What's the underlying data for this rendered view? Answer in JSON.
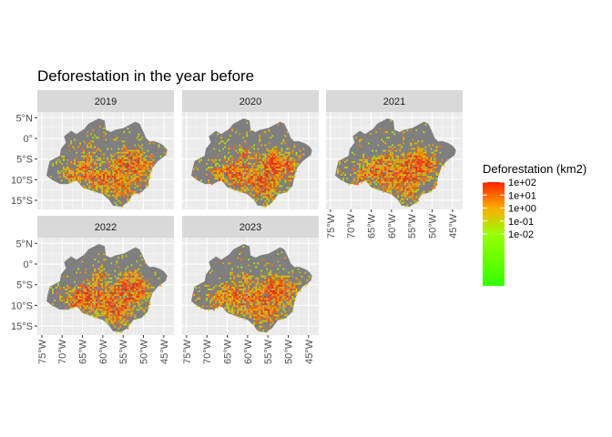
{
  "chart_data": {
    "type": "map",
    "title": "Deforestation in the year before",
    "facets": [
      "2019",
      "2020",
      "2021",
      "2022",
      "2023"
    ],
    "xlabel": "",
    "ylabel": "",
    "x_ticks": [
      {
        "value": -75,
        "label": "75°W"
      },
      {
        "value": -70,
        "label": "70°W"
      },
      {
        "value": -65,
        "label": "65°W"
      },
      {
        "value": -60,
        "label": "60°W"
      },
      {
        "value": -55,
        "label": "55°W"
      },
      {
        "value": -50,
        "label": "50°W"
      },
      {
        "value": -45,
        "label": "45°W"
      }
    ],
    "y_ticks": [
      {
        "value": 5,
        "label": "5°N"
      },
      {
        "value": 0,
        "label": "0°"
      },
      {
        "value": -5,
        "label": "5°S"
      },
      {
        "value": -10,
        "label": "10°S"
      },
      {
        "value": -15,
        "label": "15°S"
      }
    ],
    "xlim": [
      -76.1,
      -42.5
    ],
    "ylim": [
      -17.2,
      6.4
    ],
    "legend": {
      "title": "Deforestation (km2)",
      "scale": "log10",
      "labels": [
        "1e+02",
        "1e+01",
        "1e+00",
        "1e-01",
        "1e-02"
      ],
      "label_values": [
        2,
        1,
        0,
        -1,
        -2
      ],
      "range_log10": [
        -6,
        2
      ],
      "color_low": "#33ff00",
      "color_high": "#ff2200"
    },
    "region_color": "#7f7f7f",
    "region_outline": [
      [
        -73.5,
        -7.5
      ],
      [
        -73.0,
        -5.5
      ],
      [
        -70.5,
        -4.2
      ],
      [
        -70.2,
        -2.5
      ],
      [
        -69.0,
        -1.0
      ],
      [
        -69.5,
        0.5
      ],
      [
        -67.8,
        1.8
      ],
      [
        -66.5,
        1.0
      ],
      [
        -64.5,
        2.3
      ],
      [
        -63.5,
        3.5
      ],
      [
        -61.0,
        4.8
      ],
      [
        -59.6,
        4.3
      ],
      [
        -59.3,
        2.0
      ],
      [
        -58.0,
        1.5
      ],
      [
        -57.0,
        2.0
      ],
      [
        -54.8,
        2.5
      ],
      [
        -52.0,
        4.0
      ],
      [
        -51.0,
        3.5
      ],
      [
        -50.0,
        1.5
      ],
      [
        -49.5,
        0.2
      ],
      [
        -48.5,
        -0.8
      ],
      [
        -47.5,
        -0.7
      ],
      [
        -46.0,
        -1.2
      ],
      [
        -45.0,
        -1.8
      ],
      [
        -44.2,
        -2.8
      ],
      [
        -44.5,
        -4.0
      ],
      [
        -46.5,
        -5.5
      ],
      [
        -47.8,
        -7.0
      ],
      [
        -48.5,
        -9.0
      ],
      [
        -49.0,
        -11.5
      ],
      [
        -50.5,
        -13.0
      ],
      [
        -52.5,
        -13.5
      ],
      [
        -54.0,
        -15.5
      ],
      [
        -55.5,
        -16.5
      ],
      [
        -57.5,
        -16.2
      ],
      [
        -58.5,
        -14.8
      ],
      [
        -60.0,
        -13.5
      ],
      [
        -61.5,
        -13.0
      ],
      [
        -63.0,
        -12.5
      ],
      [
        -65.0,
        -11.8
      ],
      [
        -66.5,
        -10.0
      ],
      [
        -68.5,
        -11.0
      ],
      [
        -70.5,
        -11.0
      ],
      [
        -72.5,
        -10.0
      ],
      [
        -73.8,
        -9.0
      ]
    ],
    "deforestation_hotspots": {
      "2019": [
        [
          -51,
          -7,
          4
        ],
        [
          -53,
          -4.5,
          3.5
        ],
        [
          -55,
          -6.5,
          4
        ],
        [
          -55.5,
          -12,
          3.5
        ],
        [
          -59,
          -10,
          3.5
        ],
        [
          -62,
          -9.5,
          3
        ],
        [
          -63,
          -3,
          2.5
        ],
        [
          -67.5,
          -9,
          2.5
        ],
        [
          -64.5,
          -7,
          3
        ]
      ],
      "2020": [
        [
          -51,
          -6.5,
          4
        ],
        [
          -53.5,
          -5,
          3.5
        ],
        [
          -55,
          -7,
          4
        ],
        [
          -56,
          -12,
          3.5
        ],
        [
          -58.5,
          -10,
          4
        ],
        [
          -62.5,
          -9,
          3
        ],
        [
          -61,
          -3.5,
          2.5
        ],
        [
          -67,
          -8.5,
          2.5
        ],
        [
          -64,
          -7,
          3
        ]
      ],
      "2021": [
        [
          -51.5,
          -6.5,
          4
        ],
        [
          -54,
          -5,
          3.5
        ],
        [
          -55.5,
          -7.5,
          4
        ],
        [
          -56,
          -11.5,
          3.5
        ],
        [
          -59,
          -9.5,
          4
        ],
        [
          -62.5,
          -8.5,
          3.5
        ],
        [
          -60.5,
          -4,
          2.5
        ],
        [
          -67.5,
          -9,
          2.5
        ],
        [
          -64.5,
          -6.5,
          3
        ]
      ],
      "2022": [
        [
          -51.5,
          -6,
          4
        ],
        [
          -53.5,
          -4.5,
          3.5
        ],
        [
          -55.5,
          -7,
          4.5
        ],
        [
          -56,
          -12,
          3.5
        ],
        [
          -59,
          -10,
          4
        ],
        [
          -63,
          -8,
          3.5
        ],
        [
          -61,
          -3,
          2.5
        ],
        [
          -67,
          -9,
          3
        ],
        [
          -64.5,
          -7,
          3
        ]
      ],
      "2023": [
        [
          -51,
          -6.5,
          4
        ],
        [
          -53.5,
          -5,
          3.5
        ],
        [
          -55,
          -7,
          4
        ],
        [
          -55.5,
          -12,
          3.5
        ],
        [
          -59,
          -9.5,
          4
        ],
        [
          -62,
          -8.5,
          3.5
        ],
        [
          -60.5,
          -3.5,
          2.5
        ],
        [
          -67.5,
          -8.5,
          2.5
        ],
        [
          -64.5,
          -6.5,
          3
        ]
      ]
    }
  }
}
